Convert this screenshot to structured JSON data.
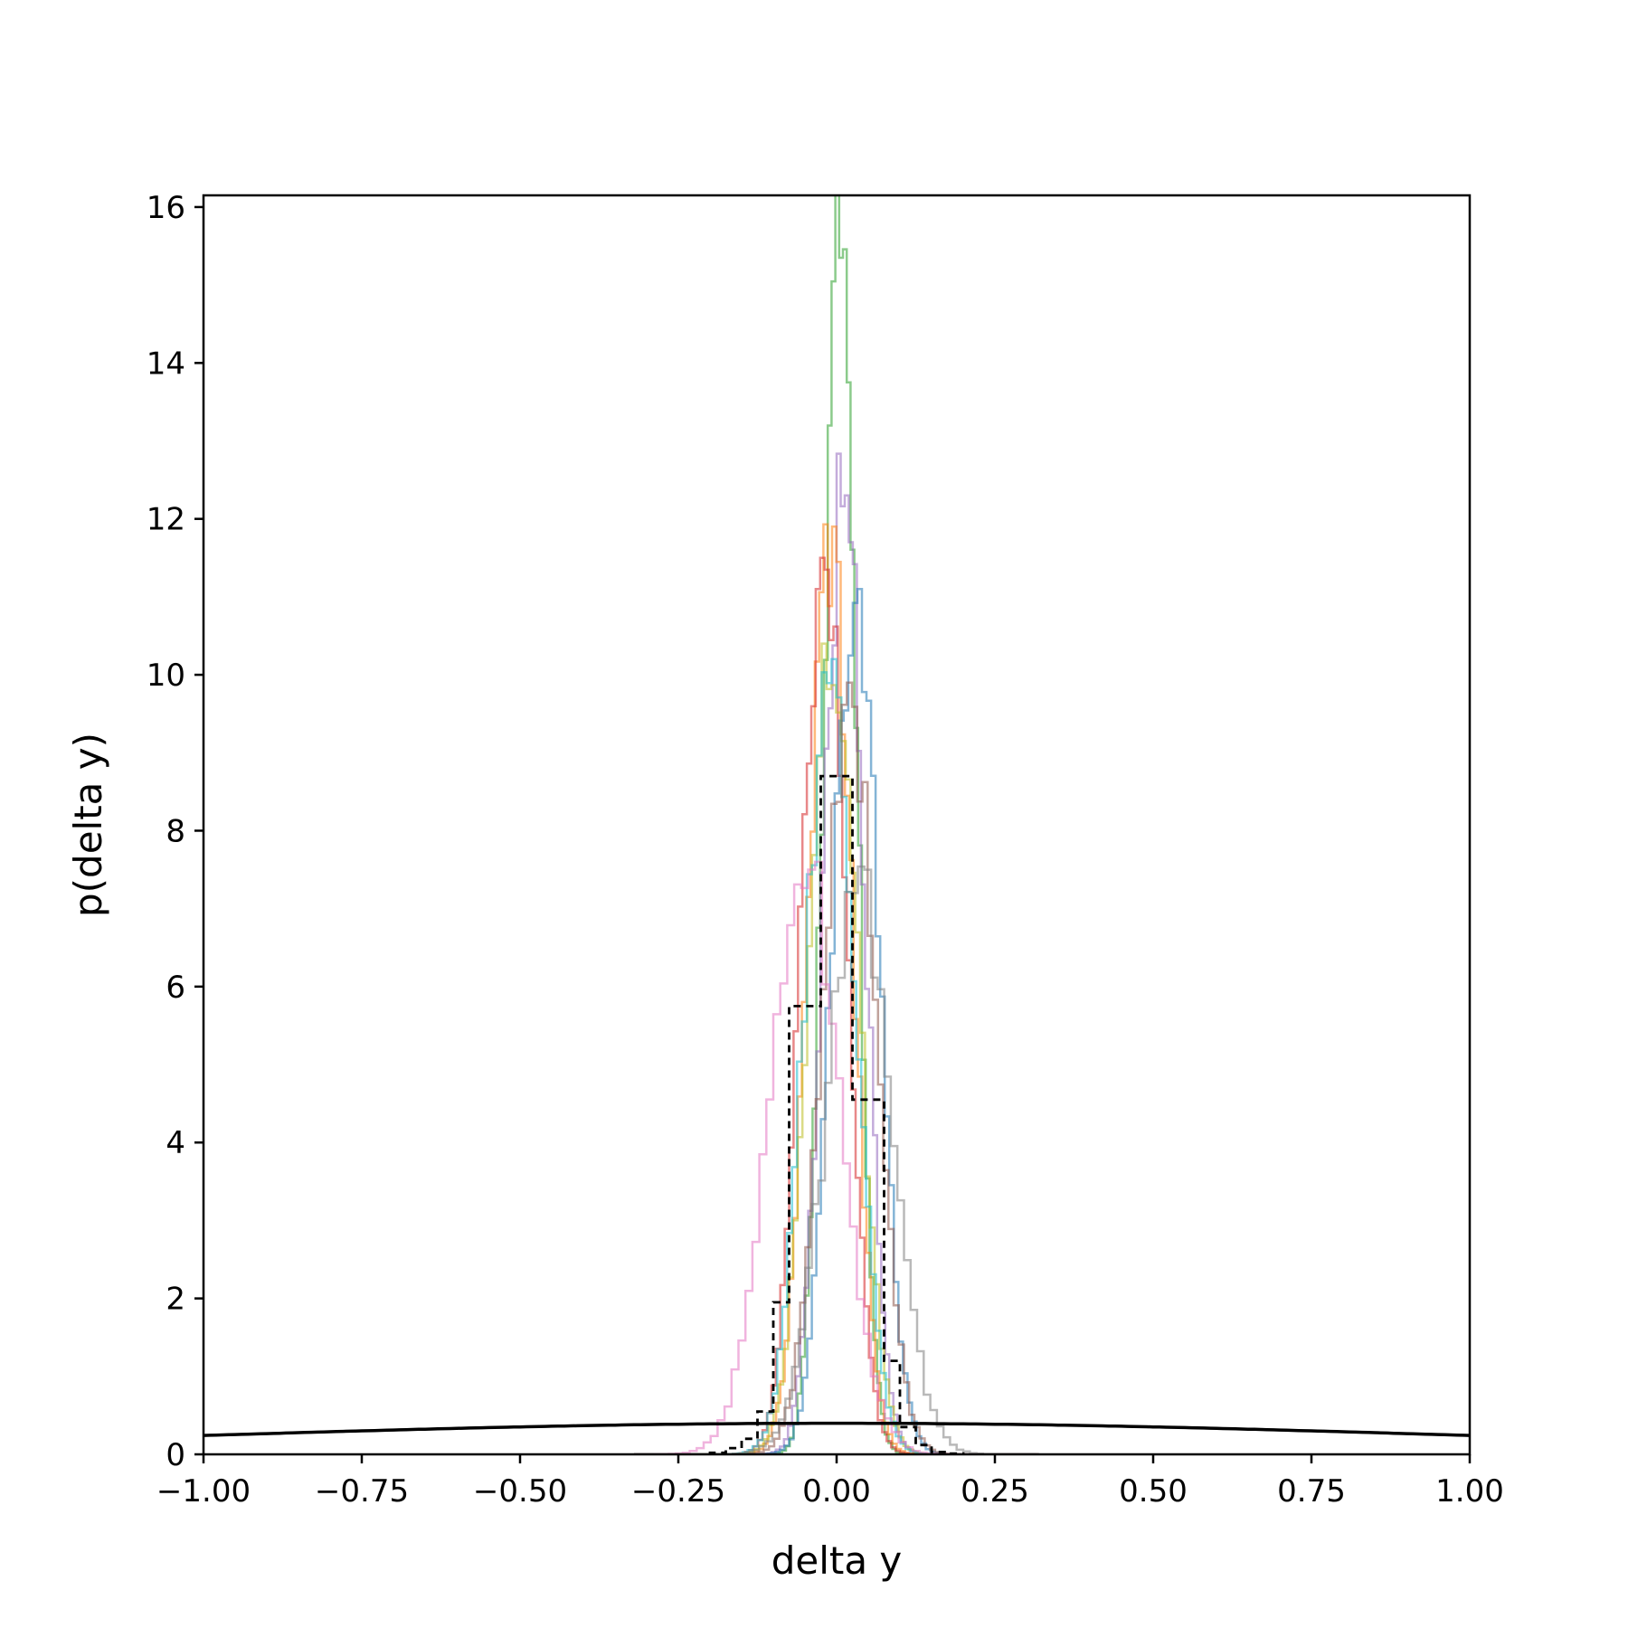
{
  "chart_data": {
    "type": "histogram",
    "title": "",
    "xlabel": "delta y",
    "ylabel": "p(delta y)",
    "xlim": [
      -1.0,
      1.0
    ],
    "ylim": [
      0,
      16.15
    ],
    "x_ticks": [
      -1.0,
      -0.75,
      -0.5,
      -0.25,
      0.0,
      0.25,
      0.5,
      0.75,
      1.0
    ],
    "x_tick_labels": [
      "−1.00",
      "−0.75",
      "−0.50",
      "−0.25",
      "0.00",
      "0.25",
      "0.50",
      "0.75",
      "1.00"
    ],
    "y_ticks": [
      0,
      2,
      4,
      6,
      8,
      10,
      12,
      14,
      16
    ],
    "y_tick_labels": [
      "0",
      "2",
      "4",
      "6",
      "8",
      "10",
      "12",
      "14",
      "16"
    ],
    "grid": false,
    "legend": "none",
    "series": [
      {
        "style": "step",
        "color": "#2ca02c",
        "opacity": 0.55,
        "peak": 15.35,
        "mean": 0.005,
        "sd": 0.026
      },
      {
        "style": "step",
        "color": "#9467bd",
        "opacity": 0.55,
        "peak": 12.3,
        "mean": 0.012,
        "sd": 0.032
      },
      {
        "style": "step",
        "color": "#ff7f0e",
        "opacity": 0.55,
        "peak": 11.9,
        "mean": -0.01,
        "sd": 0.034
      },
      {
        "style": "step",
        "color": "#d62728",
        "opacity": 0.55,
        "peak": 11.5,
        "mean": -0.02,
        "sd": 0.035
      },
      {
        "style": "step",
        "color": "#1f77b4",
        "opacity": 0.55,
        "peak": 11.1,
        "mean": 0.03,
        "sd": 0.036
      },
      {
        "style": "step",
        "color": "#bcbd22",
        "opacity": 0.55,
        "peak": 10.4,
        "mean": -0.005,
        "sd": 0.038
      },
      {
        "style": "step",
        "color": "#17becf",
        "opacity": 0.55,
        "peak": 10.2,
        "mean": -0.01,
        "sd": 0.039
      },
      {
        "style": "step",
        "color": "#8c564b",
        "opacity": 0.55,
        "peak": 9.9,
        "mean": 0.02,
        "sd": 0.041
      },
      {
        "style": "step",
        "color": "#e377c2",
        "opacity": 0.55,
        "peak": 7.6,
        "mean": -0.05,
        "sd": 0.055
      },
      {
        "style": "step",
        "color": "#7f7f7f",
        "opacity": 0.55,
        "peak": 7.2,
        "mean": 0.035,
        "sd": 0.052
      },
      {
        "style": "step-dashed",
        "color": "#000000",
        "opacity": 1,
        "bin_edges": [
          -0.2,
          -0.175,
          -0.15,
          -0.125,
          -0.1,
          -0.075,
          -0.05,
          -0.025,
          0.0,
          0.025,
          0.05,
          0.075,
          0.1,
          0.125,
          0.15,
          0.175,
          0.2
        ],
        "counts": [
          0.02,
          0.08,
          0.2,
          0.55,
          1.95,
          5.75,
          5.75,
          8.7,
          8.7,
          4.55,
          4.55,
          1.2,
          0.35,
          0.12,
          0.03,
          0.01
        ]
      },
      {
        "style": "line",
        "color": "#000000",
        "linewidth": 3.5,
        "curve": "normal-pdf",
        "mean": 0.0,
        "sd": 1.0
      }
    ]
  }
}
